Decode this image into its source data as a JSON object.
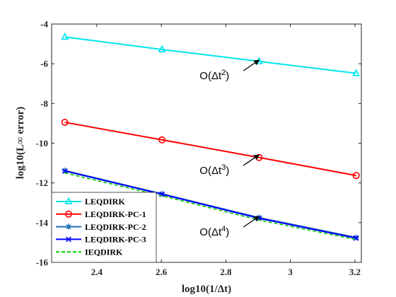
{
  "chart_data": {
    "type": "line",
    "xlabel": "log10(1/Δt)",
    "ylabel": "log10(L∞ error)",
    "xlim": [
      2.26,
      3.22
    ],
    "ylim": [
      -16,
      -4
    ],
    "xticks": [
      "2.4",
      "2.6",
      "2.8",
      "3",
      "3.2"
    ],
    "yticks": [
      "-16",
      "-14",
      "-12",
      "-10",
      "-8",
      "-6",
      "-4"
    ],
    "grid": false,
    "legend_position": "bottom-left",
    "x": [
      2.301,
      2.602,
      2.903,
      3.204
    ],
    "series": [
      {
        "name": "LEQDIRK",
        "color": "#00e5ee",
        "marker": "triangle",
        "dash": "solid",
        "values": [
          -4.65,
          -5.28,
          -5.88,
          -6.48
        ]
      },
      {
        "name": "LEQDIRK-PC-1",
        "color": "#ff0000",
        "marker": "circle",
        "dash": "solid",
        "values": [
          -8.95,
          -9.83,
          -10.72,
          -11.63
        ]
      },
      {
        "name": "LEQDIRK-PC-2",
        "color": "#1f6fb4",
        "marker": "asterisk",
        "dash": "solid",
        "values": [
          -11.38,
          -12.55,
          -13.75,
          -14.75
        ]
      },
      {
        "name": "LEQDIRK-PC-3",
        "color": "#0000ff",
        "marker": "x",
        "dash": "solid",
        "values": [
          -11.4,
          -12.57,
          -13.78,
          -14.78
        ]
      },
      {
        "name": "IEQDIRK",
        "color": "#00cc00",
        "marker": "none",
        "dash": "dashed",
        "values": [
          -11.5,
          -12.65,
          -13.87,
          -14.85
        ]
      }
    ],
    "annotations": [
      {
        "base": "O(Δt",
        "exp": "2",
        "close": ")",
        "tail": [
          2.905,
          -5.78
        ]
      },
      {
        "base": "O(Δt",
        "exp": "3",
        "close": ")",
        "tail": [
          2.905,
          -10.55
        ]
      },
      {
        "base": "O(Δt",
        "exp": "4",
        "close": ")",
        "tail": [
          2.905,
          -13.65
        ]
      }
    ]
  }
}
